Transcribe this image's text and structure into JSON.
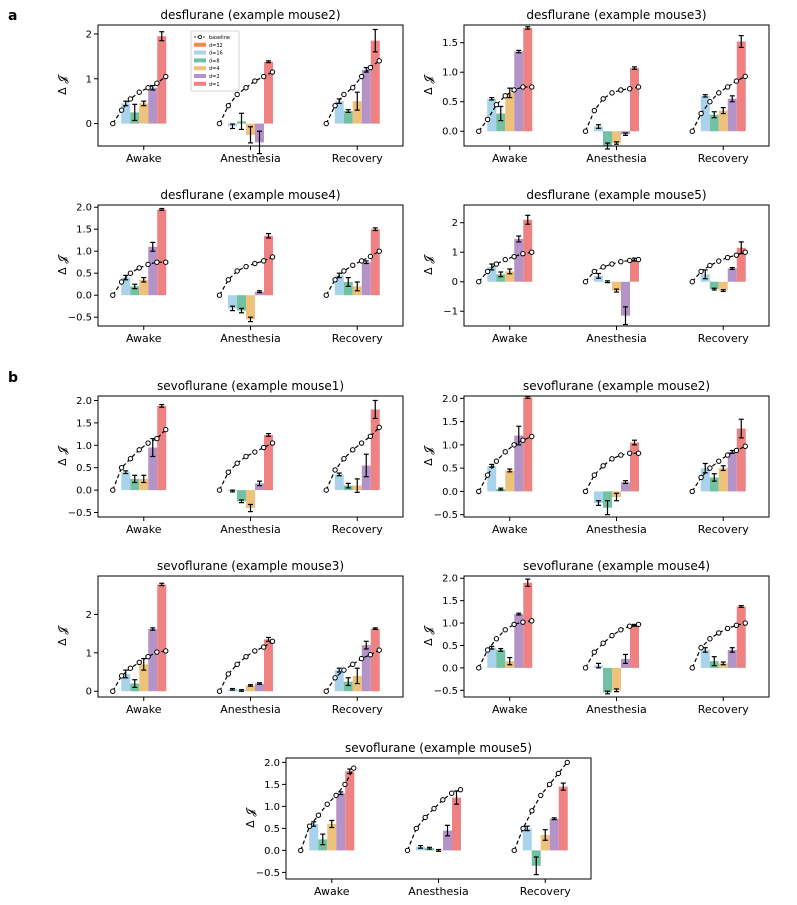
{
  "panel_labels": [
    "a",
    "b"
  ],
  "legend": {
    "entries": [
      "baseline",
      "d=32",
      "d=16",
      "d=8",
      "d=4",
      "d=2",
      "d=1"
    ]
  },
  "series_colors": {
    "d=32": "#f58a4b",
    "d=16": "#a9d3ea",
    "d=8": "#72c1a2",
    "d=4": "#efc27b",
    "d=2": "#b493c9",
    "d=1": "#ee8282",
    "baseline_line": "#000000"
  },
  "chart_data": [
    {
      "type": "bar",
      "title": "desflurane (example mouse2)",
      "ylabel": "Δ 𝓙",
      "categories": [
        "Awake",
        "Anesthesia",
        "Recovery"
      ],
      "ylim": [
        -0.5,
        2.2
      ],
      "yticks": [
        0,
        1,
        2
      ],
      "yticklabels": [
        "0",
        "1",
        "2"
      ],
      "legend_placement": "upper-left",
      "series": [
        {
          "name": "d=16",
          "values": [
            0.45,
            -0.06,
            0.5
          ],
          "errors": [
            0.05,
            0.05,
            0.05
          ]
        },
        {
          "name": "d=8",
          "values": [
            0.25,
            0.05,
            0.28
          ],
          "errors": [
            0.18,
            0.18,
            0.03
          ]
        },
        {
          "name": "d=4",
          "values": [
            0.45,
            -0.25,
            0.5
          ],
          "errors": [
            0.05,
            0.18,
            0.2
          ]
        },
        {
          "name": "d=2",
          "values": [
            0.8,
            -0.42,
            1.2
          ],
          "errors": [
            0.05,
            0.25,
            0.05
          ]
        },
        {
          "name": "d=1",
          "values": [
            1.95,
            1.38,
            1.85
          ],
          "errors": [
            0.1,
            0.02,
            0.25
          ]
        }
      ],
      "baseline": [
        [
          0,
          0.3,
          0.55,
          0.7,
          0.8,
          0.9,
          1.05
        ],
        [
          0,
          0.4,
          0.65,
          0.8,
          0.95,
          1.05,
          1.15
        ],
        [
          0,
          0.4,
          0.65,
          0.8,
          1.05,
          1.25,
          1.4
        ]
      ]
    },
    {
      "type": "bar",
      "title": "desflurane (example mouse3)",
      "ylabel": "Δ 𝓙",
      "categories": [
        "Awake",
        "Anesthesia",
        "Recovery"
      ],
      "ylim": [
        -0.25,
        1.8
      ],
      "yticks": [
        0,
        0.5,
        1,
        1.5
      ],
      "yticklabels": [
        "0.0",
        "0.5",
        "1.0",
        "1.5"
      ],
      "series": [
        {
          "name": "d=16",
          "values": [
            0.55,
            0.08,
            0.6
          ],
          "errors": [
            0.02,
            0.03,
            0.02
          ]
        },
        {
          "name": "d=8",
          "values": [
            0.3,
            -0.25,
            0.28
          ],
          "errors": [
            0.12,
            0.05,
            0.05
          ]
        },
        {
          "name": "d=4",
          "values": [
            0.65,
            -0.2,
            0.35
          ],
          "errors": [
            0.08,
            0.02,
            0.05
          ]
        },
        {
          "name": "d=2",
          "values": [
            1.35,
            -0.05,
            0.55
          ],
          "errors": [
            0.02,
            0.02,
            0.05
          ]
        },
        {
          "name": "d=1",
          "values": [
            1.75,
            1.07,
            1.52
          ],
          "errors": [
            0.02,
            0.02,
            0.1
          ]
        }
      ],
      "baseline": [
        [
          0,
          0.2,
          0.45,
          0.6,
          0.7,
          0.75,
          0.75
        ],
        [
          0,
          0.35,
          0.55,
          0.65,
          0.7,
          0.72,
          0.75
        ],
        [
          0,
          0.3,
          0.5,
          0.65,
          0.75,
          0.85,
          0.93
        ]
      ]
    },
    {
      "type": "bar",
      "title": "desflurane (example mouse4)",
      "ylabel": "Δ 𝓙",
      "categories": [
        "Awake",
        "Anesthesia",
        "Recovery"
      ],
      "ylim": [
        -0.7,
        2.05
      ],
      "yticks": [
        -0.5,
        0,
        0.5,
        1,
        1.5,
        2
      ],
      "yticklabels": [
        "−0.5",
        "0.0",
        "0.5",
        "1.0",
        "1.5",
        "2.0"
      ],
      "series": [
        {
          "name": "d=16",
          "values": [
            0.4,
            -0.3,
            0.45
          ],
          "errors": [
            0.05,
            0.05,
            0.05
          ]
        },
        {
          "name": "d=8",
          "values": [
            0.2,
            -0.35,
            0.3
          ],
          "errors": [
            0.05,
            0.05,
            0.1
          ]
        },
        {
          "name": "d=4",
          "values": [
            0.35,
            -0.55,
            0.2
          ],
          "errors": [
            0.05,
            0.05,
            0.1
          ]
        },
        {
          "name": "d=2",
          "values": [
            1.1,
            0.08,
            0.75
          ],
          "errors": [
            0.1,
            0.02,
            0.03
          ]
        },
        {
          "name": "d=1",
          "values": [
            1.95,
            1.35,
            1.5
          ],
          "errors": [
            0.02,
            0.05,
            0.03
          ]
        }
      ],
      "baseline": [
        [
          0,
          0.3,
          0.5,
          0.62,
          0.7,
          0.75,
          0.75
        ],
        [
          0,
          0.35,
          0.55,
          0.65,
          0.72,
          0.78,
          0.87
        ],
        [
          0,
          0.35,
          0.55,
          0.68,
          0.78,
          0.88,
          1.0
        ]
      ]
    },
    {
      "type": "bar",
      "title": "desflurane (example mouse5)",
      "ylabel": "Δ 𝓙",
      "categories": [
        "Awake",
        "Anesthesia",
        "Recovery"
      ],
      "ylim": [
        -1.5,
        2.6
      ],
      "yticks": [
        -1,
        0,
        1,
        2
      ],
      "yticklabels": [
        "−1",
        "0",
        "1",
        "2"
      ],
      "series": [
        {
          "name": "d=16",
          "values": [
            0.5,
            0.2,
            0.25
          ],
          "errors": [
            0.1,
            0.08,
            0.15
          ]
        },
        {
          "name": "d=8",
          "values": [
            0.25,
            0.0,
            -0.25
          ],
          "errors": [
            0.08,
            0.03,
            0.03
          ]
        },
        {
          "name": "d=4",
          "values": [
            0.35,
            -0.3,
            -0.3
          ],
          "errors": [
            0.08,
            0.05,
            0.03
          ]
        },
        {
          "name": "d=2",
          "values": [
            1.45,
            -1.15,
            0.45
          ],
          "errors": [
            0.1,
            0.3,
            0.03
          ]
        },
        {
          "name": "d=1",
          "values": [
            2.1,
            0.75,
            1.15
          ],
          "errors": [
            0.15,
            0.05,
            0.2
          ]
        }
      ],
      "baseline": [
        [
          0,
          0.35,
          0.6,
          0.75,
          0.85,
          0.95,
          1.0
        ],
        [
          0,
          0.35,
          0.5,
          0.6,
          0.68,
          0.72,
          0.75
        ],
        [
          0,
          0.35,
          0.55,
          0.7,
          0.82,
          0.9,
          1.0
        ]
      ]
    },
    {
      "type": "bar",
      "title": "sevoflurane (example mouse1)",
      "ylabel": "Δ 𝓙",
      "categories": [
        "Awake",
        "Anesthesia",
        "Recovery"
      ],
      "ylim": [
        -0.6,
        2.1
      ],
      "yticks": [
        -0.5,
        0,
        0.5,
        1,
        1.5,
        2
      ],
      "yticklabels": [
        "−0.5",
        "0.0",
        "0.5",
        "1.0",
        "1.5",
        "2.0"
      ],
      "series": [
        {
          "name": "d=16",
          "values": [
            0.4,
            -0.02,
            0.35
          ],
          "errors": [
            0.03,
            0.02,
            0.03
          ]
        },
        {
          "name": "d=8",
          "values": [
            0.25,
            -0.25,
            0.1
          ],
          "errors": [
            0.08,
            0.03,
            0.05
          ]
        },
        {
          "name": "d=4",
          "values": [
            0.25,
            -0.4,
            0.1
          ],
          "errors": [
            0.08,
            0.08,
            0.15
          ]
        },
        {
          "name": "d=2",
          "values": [
            0.95,
            0.15,
            0.55
          ],
          "errors": [
            0.2,
            0.05,
            0.25
          ]
        },
        {
          "name": "d=1",
          "values": [
            1.88,
            1.23,
            1.8
          ],
          "errors": [
            0.03,
            0.03,
            0.2
          ]
        }
      ],
      "baseline": [
        [
          0,
          0.5,
          0.7,
          0.9,
          1.05,
          1.15,
          1.35
        ],
        [
          0,
          0.4,
          0.6,
          0.75,
          0.85,
          0.95,
          1.05
        ],
        [
          0,
          0.45,
          0.7,
          0.9,
          1.05,
          1.2,
          1.4
        ]
      ]
    },
    {
      "type": "bar",
      "title": "sevoflurane (example mouse2)",
      "ylabel": "Δ 𝓙",
      "categories": [
        "Awake",
        "Anesthesia",
        "Recovery"
      ],
      "ylim": [
        -0.55,
        2.05
      ],
      "yticks": [
        -0.5,
        0,
        0.5,
        1,
        1.5,
        2
      ],
      "yticklabels": [
        "−0.5",
        "0.0",
        "0.5",
        "1.0",
        "1.5",
        "2.0"
      ],
      "series": [
        {
          "name": "d=16",
          "values": [
            0.55,
            -0.25,
            0.5
          ],
          "errors": [
            0.03,
            0.05,
            0.1
          ]
        },
        {
          "name": "d=8",
          "values": [
            0.05,
            -0.35,
            0.3
          ],
          "errors": [
            0.02,
            0.15,
            0.08
          ]
        },
        {
          "name": "d=4",
          "values": [
            0.45,
            -0.12,
            0.5
          ],
          "errors": [
            0.03,
            0.08,
            0.05
          ]
        },
        {
          "name": "d=2",
          "values": [
            1.2,
            0.2,
            0.85
          ],
          "errors": [
            0.2,
            0.03,
            0.03
          ]
        },
        {
          "name": "d=1",
          "values": [
            2.02,
            1.05,
            1.35
          ],
          "errors": [
            0.02,
            0.05,
            0.2
          ]
        }
      ],
      "baseline": [
        [
          0,
          0.35,
          0.65,
          0.85,
          1.0,
          1.1,
          1.18
        ],
        [
          0,
          0.35,
          0.55,
          0.7,
          0.78,
          0.82,
          0.82
        ],
        [
          0,
          0.3,
          0.5,
          0.65,
          0.78,
          0.88,
          0.97
        ]
      ]
    },
    {
      "type": "bar",
      "title": "sevoflurane (example mouse3)",
      "ylabel": "Δ 𝓙",
      "categories": [
        "Awake",
        "Anesthesia",
        "Recovery"
      ],
      "ylim": [
        -0.15,
        3.0
      ],
      "yticks": [
        0,
        1,
        2
      ],
      "yticklabels": [
        "0",
        "1",
        "2"
      ],
      "series": [
        {
          "name": "d=16",
          "values": [
            0.45,
            0.05,
            0.55
          ],
          "errors": [
            0.1,
            0.02,
            0.05
          ]
        },
        {
          "name": "d=8",
          "values": [
            0.2,
            0.02,
            0.25
          ],
          "errors": [
            0.1,
            0.02,
            0.1
          ]
        },
        {
          "name": "d=4",
          "values": [
            0.7,
            0.15,
            0.4
          ],
          "errors": [
            0.15,
            0.02,
            0.2
          ]
        },
        {
          "name": "d=2",
          "values": [
            1.62,
            0.2,
            1.2
          ],
          "errors": [
            0.03,
            0.02,
            0.1
          ]
        },
        {
          "name": "d=1",
          "values": [
            2.78,
            1.35,
            1.63
          ],
          "errors": [
            0.03,
            0.05,
            0.02
          ]
        }
      ],
      "baseline": [
        [
          0,
          0.4,
          0.6,
          0.75,
          0.9,
          1.02,
          1.05
        ],
        [
          0,
          0.45,
          0.7,
          0.9,
          1.05,
          1.15,
          1.3
        ],
        [
          0,
          0.35,
          0.55,
          0.7,
          0.85,
          0.95,
          1.07
        ]
      ]
    },
    {
      "type": "bar",
      "title": "sevoflurane (example mouse4)",
      "ylabel": "Δ 𝓙",
      "categories": [
        "Awake",
        "Anesthesia",
        "Recovery"
      ],
      "ylim": [
        -0.65,
        2.05
      ],
      "yticks": [
        -0.5,
        0,
        0.5,
        1,
        1.5,
        2
      ],
      "yticklabels": [
        "−0.5",
        "0.0",
        "0.5",
        "1.0",
        "1.5",
        "2.0"
      ],
      "series": [
        {
          "name": "d=16",
          "values": [
            0.45,
            0.05,
            0.4
          ],
          "errors": [
            0.03,
            0.05,
            0.05
          ]
        },
        {
          "name": "d=8",
          "values": [
            0.4,
            -0.55,
            0.15
          ],
          "errors": [
            0.03,
            0.03,
            0.1
          ]
        },
        {
          "name": "d=4",
          "values": [
            0.15,
            -0.5,
            0.1
          ],
          "errors": [
            0.08,
            0.03,
            0.03
          ]
        },
        {
          "name": "d=2",
          "values": [
            1.2,
            0.2,
            0.4
          ],
          "errors": [
            0.02,
            0.1,
            0.05
          ]
        },
        {
          "name": "d=1",
          "values": [
            1.9,
            0.95,
            1.37
          ],
          "errors": [
            0.08,
            0.02,
            0.02
          ]
        }
      ],
      "baseline": [
        [
          0,
          0.4,
          0.65,
          0.85,
          0.97,
          1.02,
          1.05
        ],
        [
          0,
          0.35,
          0.55,
          0.72,
          0.85,
          0.93,
          0.97
        ],
        [
          0,
          0.45,
          0.65,
          0.78,
          0.88,
          0.95,
          1.0
        ]
      ]
    },
    {
      "type": "bar",
      "title": "sevoflurane (example mouse5)",
      "ylabel": "Δ 𝓙",
      "categories": [
        "Awake",
        "Anesthesia",
        "Recovery"
      ],
      "ylim": [
        -0.65,
        2.1
      ],
      "yticks": [
        -0.5,
        0,
        0.5,
        1,
        1.5,
        2
      ],
      "yticklabels": [
        "−0.5",
        "0.0",
        "0.5",
        "1.0",
        "1.5",
        "2.0"
      ],
      "series": [
        {
          "name": "d=16",
          "values": [
            0.6,
            0.08,
            0.5
          ],
          "errors": [
            0.05,
            0.03,
            0.05
          ]
        },
        {
          "name": "d=8",
          "values": [
            0.25,
            0.05,
            -0.35
          ],
          "errors": [
            0.12,
            0.02,
            0.2
          ]
        },
        {
          "name": "d=4",
          "values": [
            0.6,
            0.0,
            0.35
          ],
          "errors": [
            0.08,
            0.02,
            0.12
          ]
        },
        {
          "name": "d=2",
          "values": [
            1.3,
            0.45,
            0.72
          ],
          "errors": [
            0.03,
            0.12,
            0.02
          ]
        },
        {
          "name": "d=1",
          "values": [
            1.8,
            1.2,
            1.45
          ],
          "errors": [
            0.05,
            0.15,
            0.08
          ]
        }
      ],
      "baseline": [
        [
          0,
          0.55,
          0.8,
          1.05,
          1.25,
          1.5,
          1.87
        ],
        [
          0,
          0.5,
          0.75,
          0.95,
          1.15,
          1.3,
          1.38
        ],
        [
          0,
          0.5,
          0.9,
          1.25,
          1.5,
          1.75,
          2.0
        ]
      ]
    }
  ]
}
